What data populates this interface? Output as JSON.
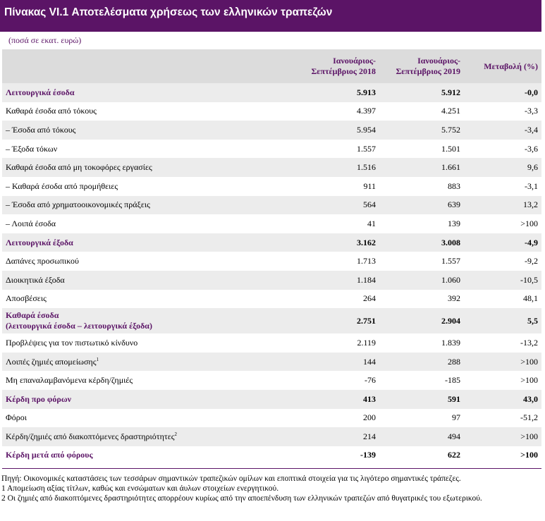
{
  "title": "Πίνακας VI.1 Αποτελέσματα χρήσεως των ελληνικών τραπεζών",
  "units": "(ποσά σε εκατ. ευρώ)",
  "columns": {
    "c1_line1": "Ιανουάριος-",
    "c1_line2": "Σεπτέμβριος 2018",
    "c2_line1": "Ιανουάριος-",
    "c2_line2": "Σεπτέμβριος 2019",
    "c3": "Μεταβολή (%)"
  },
  "rows": [
    {
      "label": "Λειτουργικά έσοδα",
      "v2018": "5.913",
      "v2019": "5.912",
      "change": "-0,0"
    },
    {
      "label": "Καθαρά έσοδα από τόκους",
      "v2018": "4.397",
      "v2019": "4.251",
      "change": "-3,3"
    },
    {
      "label": "–  Έσοδα από τόκους",
      "v2018": "5.954",
      "v2019": "5.752",
      "change": "-3,4"
    },
    {
      "label": "–  Έξοδα τόκων",
      "v2018": "1.557",
      "v2019": "1.501",
      "change": "-3,6"
    },
    {
      "label": "Καθαρά έσοδα από μη τοκοφόρες εργασίες",
      "v2018": "1.516",
      "v2019": "1.661",
      "change": "9,6"
    },
    {
      "label": "–  Καθαρά έσοδα από προμήθειες",
      "v2018": "911",
      "v2019": "883",
      "change": "-3,1"
    },
    {
      "label": "–  Έσοδα από χρηματοοικονομικές πράξεις",
      "v2018": "564",
      "v2019": "639",
      "change": "13,2"
    },
    {
      "label": "–  Λοιπά έσοδα",
      "v2018": "41",
      "v2019": "139",
      "change": ">100"
    },
    {
      "label": "Λειτουργικά έξοδα",
      "v2018": "3.162",
      "v2019": "3.008",
      "change": "-4,9"
    },
    {
      "label": "Δαπάνες προσωπικού",
      "v2018": "1.713",
      "v2019": "1.557",
      "change": "-9,2"
    },
    {
      "label": "Διοικητικά έξοδα",
      "v2018": "1.184",
      "v2019": "1.060",
      "change": "-10,5"
    },
    {
      "label": "Αποσβέσεις",
      "v2018": "264",
      "v2019": "392",
      "change": "48,1"
    },
    {
      "label": "Καθαρά έσοδα",
      "label2": "(λειτουργικά έσοδα – λειτουργικά έξοδα)",
      "v2018": "2.751",
      "v2019": "2.904",
      "change": "5,5"
    },
    {
      "label": "Προβλέψεις για τον πιστωτικό κίνδυνο",
      "v2018": "2.119",
      "v2019": "1.839",
      "change": "-13,2"
    },
    {
      "label": "Λοιπές ζημιές απομείωσης",
      "sup": "1",
      "v2018": "144",
      "v2019": "288",
      "change": ">100"
    },
    {
      "label": "Μη επαναλαμβανόμενα κέρδη/ζημιές",
      "v2018": "-76",
      "v2019": "-185",
      "change": ">100"
    },
    {
      "label": "Κέρδη προ φόρων",
      "v2018": "413",
      "v2019": "591",
      "change": "43,0"
    },
    {
      "label": "Φόροι",
      "v2018": "200",
      "v2019": "97",
      "change": "-51,2"
    },
    {
      "label": "Κέρδη/ζημιές από διακοπτόμενες δραστηριότητες",
      "sup": "2",
      "v2018": "214",
      "v2019": "494",
      "change": ">100"
    },
    {
      "label": "Κέρδη μετά από φόρους",
      "v2018": "-139",
      "v2019": "622",
      "change": ">100"
    }
  ],
  "notes": {
    "source": "Πηγή: Οικονομικές καταστάσεις των τεσσάρων σημαντικών τραπεζικών ομίλων και εποπτικά στοιχεία για τις λιγότερο σημαντικές τράπεζες.",
    "note1": "1 Απομείωση αξίας τίτλων, καθώς και ενσώματων και άυλων στοιχείων ενεργητικού.",
    "note2": "2 Οι ζημιές από διακοπτόμενες δραστηριότητες απορρέουν κυρίως από την αποεπένδυση των ελληνικών τραπεζών από θυγατρικές του εξωτερικού."
  }
}
